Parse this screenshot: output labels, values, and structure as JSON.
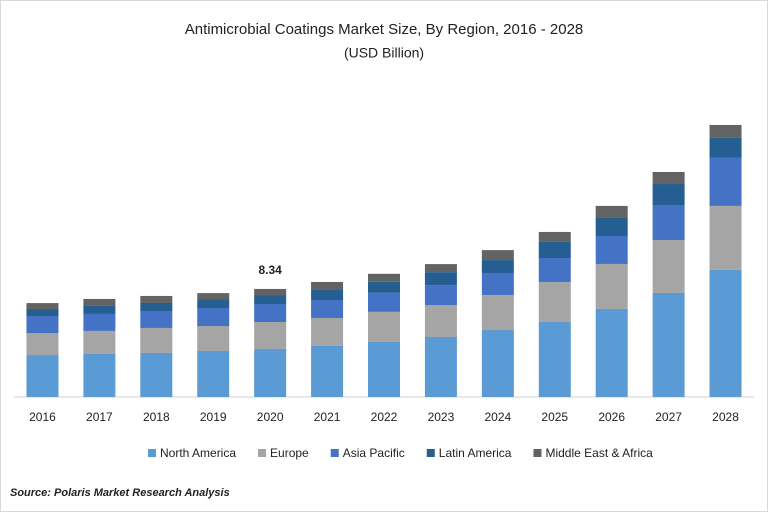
{
  "chart_data": {
    "type": "stacked-bar",
    "title": "Antimicrobial Coatings Market Size, By Region, 2016 - 2028",
    "subtitle": "(USD Billion)",
    "source": "Source: Polaris Market Research Analysis",
    "categories": [
      "2016",
      "2017",
      "2018",
      "2019",
      "2020",
      "2021",
      "2022",
      "2023",
      "2024",
      "2025",
      "2026",
      "2027",
      "2028"
    ],
    "series": [
      {
        "name": "North America",
        "color": "#5b9bd5",
        "values": [
          3.24,
          3.32,
          3.4,
          3.55,
          3.71,
          3.94,
          4.25,
          4.63,
          5.17,
          5.79,
          6.8,
          8.03,
          9.81
        ]
      },
      {
        "name": "Europe",
        "color": "#a5a5a5",
        "values": [
          1.7,
          1.78,
          1.93,
          1.93,
          2.08,
          2.16,
          2.32,
          2.47,
          2.7,
          3.09,
          3.47,
          4.09,
          4.94
        ]
      },
      {
        "name": "Asia Pacific",
        "color": "#4472c4",
        "values": [
          1.31,
          1.31,
          1.31,
          1.39,
          1.39,
          1.39,
          1.47,
          1.54,
          1.7,
          1.85,
          2.16,
          2.7,
          3.71
        ]
      },
      {
        "name": "Latin America",
        "color": "#255e91",
        "values": [
          0.54,
          0.62,
          0.62,
          0.69,
          0.69,
          0.77,
          0.85,
          1.0,
          1.0,
          1.24,
          1.39,
          1.62,
          1.54
        ]
      },
      {
        "name": "Middle East & Africa",
        "color": "#636363",
        "values": [
          0.46,
          0.54,
          0.54,
          0.46,
          0.47,
          0.62,
          0.62,
          0.62,
          0.77,
          0.77,
          0.93,
          0.93,
          1.0
        ]
      }
    ],
    "total_labels": [
      null,
      null,
      null,
      null,
      "8.34",
      null,
      null,
      null,
      null,
      null,
      null,
      null,
      null
    ],
    "ylim": [
      0,
      22
    ]
  }
}
